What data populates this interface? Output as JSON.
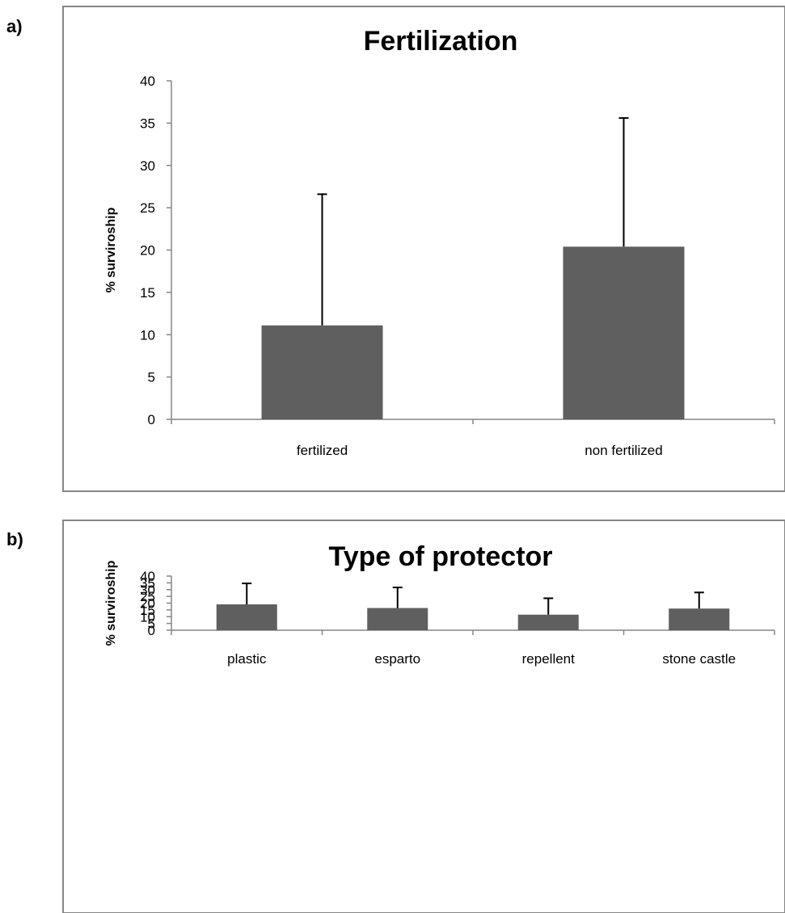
{
  "panels": [
    {
      "label": "a)"
    },
    {
      "label": "b)"
    }
  ],
  "chart_data": [
    {
      "type": "bar",
      "title": "Fertilization",
      "xlabel": "",
      "ylabel": "% surviroship",
      "categories": [
        "fertilized",
        "non fertilized"
      ],
      "values": [
        11.1,
        20.4
      ],
      "error_upper": [
        15.5,
        15.2
      ],
      "ylim": [
        0,
        40
      ],
      "yticks": [
        0,
        5,
        10,
        15,
        20,
        25,
        30,
        35,
        40
      ],
      "bar_color": "#5f5f5f",
      "grid": false
    },
    {
      "type": "bar",
      "title": "Type of protector",
      "xlabel": "",
      "ylabel": "% surviroship",
      "categories": [
        "plastic",
        "esparto",
        "repellent",
        "stone castle"
      ],
      "values": [
        19.1,
        16.4,
        11.5,
        16.0
      ],
      "error_upper": [
        15.5,
        15.2,
        12.1,
        11.9
      ],
      "ylim": [
        0,
        40
      ],
      "yticks": [
        0,
        5,
        10,
        15,
        20,
        25,
        30,
        35,
        40
      ],
      "bar_color": "#5f5f5f",
      "grid": false
    }
  ]
}
